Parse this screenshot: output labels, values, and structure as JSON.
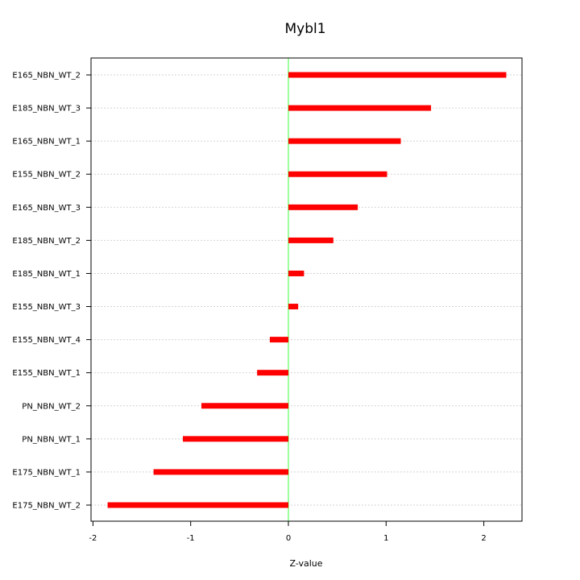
{
  "chart_data": {
    "type": "bar",
    "orientation": "horizontal",
    "title": "Mybl1",
    "xlabel": "Z-value",
    "ylabel": "",
    "xlim": [
      -2,
      2.4
    ],
    "xticks": [
      -2,
      -1,
      0,
      1,
      2
    ],
    "grid": true,
    "zero_line": true,
    "categories": [
      "E165_NBN_WT_2",
      "E185_NBN_WT_3",
      "E165_NBN_WT_1",
      "E155_NBN_WT_2",
      "E165_NBN_WT_3",
      "E185_NBN_WT_2",
      "E185_NBN_WT_1",
      "E155_NBN_WT_3",
      "E155_NBN_WT_4",
      "E155_NBN_WT_1",
      "PN_NBN_WT_2",
      "PN_NBN_WT_1",
      "E175_NBN_WT_1",
      "E175_NBN_WT_2"
    ],
    "values": [
      2.23,
      1.46,
      1.15,
      1.01,
      0.71,
      0.46,
      0.16,
      0.1,
      -0.19,
      -0.32,
      -0.89,
      -1.08,
      -1.38,
      -1.85
    ],
    "colors": {
      "bar": "#ff0000",
      "zero_line": "#7fff7f",
      "grid": "#d3d3d3"
    }
  }
}
